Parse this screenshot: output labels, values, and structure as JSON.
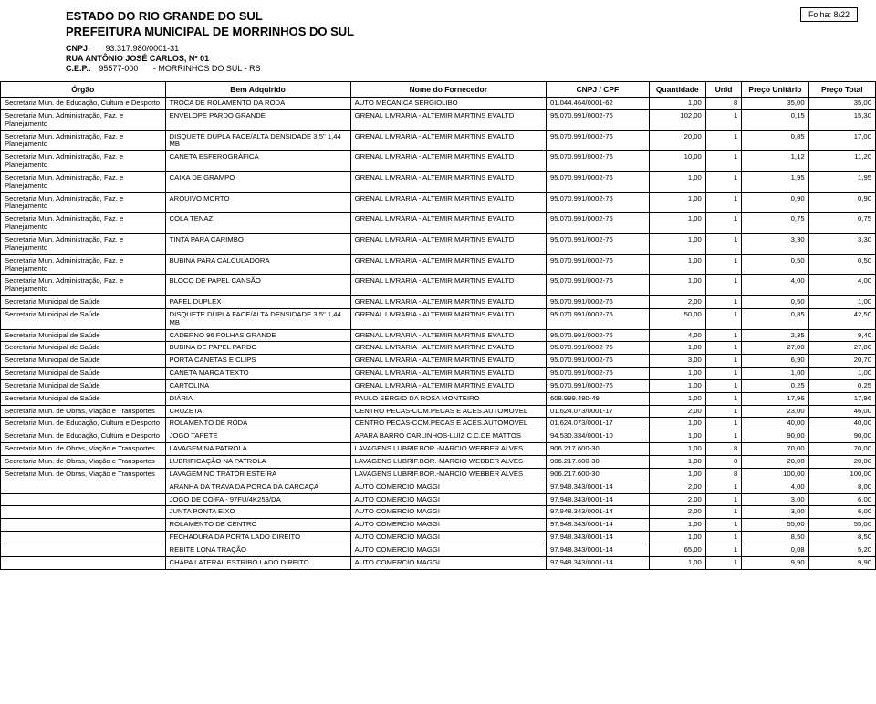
{
  "header": {
    "folha_label": "Folha:",
    "folha_value": "8/22",
    "title1": "ESTADO DO RIO GRANDE DO SUL",
    "title2": "PREFEITURA MUNICIPAL DE MORRINHOS DO SUL",
    "cnpj_label": "CNPJ:",
    "cnpj_value": "93.317.980/0001-31",
    "endereco": "RUA ANTÔNIO JOSÉ CARLOS, Nº 01",
    "cep_label": "C.E.P.:",
    "cep_value": "95577-000",
    "cidade_value": "- MORRINHOS DO SUL - RS"
  },
  "columns": {
    "orgao": "Órgão",
    "bem": "Bem Adquirido",
    "fornecedor": "Nome do Fornecedor",
    "cnpj": "CNPJ / CPF",
    "qtd": "Quantidade",
    "unid": "Unid",
    "unit": "Preço Unitário",
    "total": "Preço Total"
  },
  "rows": [
    {
      "orgao": "Secretaria Mun. de Educação, Cultura e Desporto",
      "bem": "TROCA DE ROLAMENTO DA RODA",
      "forn": "AUTO MECANICA SERGIOLIBO",
      "cnpj": "01.044.464/0001-62",
      "qtd": "1,00",
      "unid": "8",
      "unit": "35,00",
      "total": "35,00"
    },
    {
      "orgao": "Secretaria Mun. Administração, Faz. e Planejamento",
      "bem": "ENVELOPE PARDO GRANDE",
      "forn": "GRENAL LIVRARIA - ALTEMIR MARTINS EVALTD",
      "cnpj": "95.070.991/0002-76",
      "qtd": "102,00",
      "unid": "1",
      "unit": "0,15",
      "total": "15,30"
    },
    {
      "orgao": "Secretaria Mun. Administração, Faz. e Planejamento",
      "bem": "DISQUETE DUPLA FACE/ALTA DENSIDADE 3,5\" 1,44 MB",
      "forn": "GRENAL LIVRARIA - ALTEMIR MARTINS EVALTD",
      "cnpj": "95.070.991/0002-76",
      "qtd": "20,00",
      "unid": "1",
      "unit": "0,85",
      "total": "17,00"
    },
    {
      "orgao": "Secretaria Mun. Administração, Faz. e Planejamento",
      "bem": "CANETA ESFEROGRÁFICA",
      "forn": "GRENAL LIVRARIA - ALTEMIR MARTINS EVALTD",
      "cnpj": "95.070.991/0002-76",
      "qtd": "10,00",
      "unid": "1",
      "unit": "1,12",
      "total": "11,20"
    },
    {
      "orgao": "Secretaria Mun. Administração, Faz. e Planejamento",
      "bem": "CAIXA DE GRAMPO",
      "forn": "GRENAL LIVRARIA - ALTEMIR MARTINS EVALTD",
      "cnpj": "95.070.991/0002-76",
      "qtd": "1,00",
      "unid": "1",
      "unit": "1,95",
      "total": "1,95"
    },
    {
      "orgao": "Secretaria Mun. Administração, Faz. e Planejamento",
      "bem": "ARQUIVO MORTO",
      "forn": "GRENAL LIVRARIA - ALTEMIR MARTINS EVALTD",
      "cnpj": "95.070.991/0002-76",
      "qtd": "1,00",
      "unid": "1",
      "unit": "0,90",
      "total": "0,90"
    },
    {
      "orgao": "Secretaria Mun. Administração, Faz. e Planejamento",
      "bem": "COLA TENAZ",
      "forn": "GRENAL LIVRARIA - ALTEMIR MARTINS EVALTD",
      "cnpj": "95.070.991/0002-76",
      "qtd": "1,00",
      "unid": "1",
      "unit": "0,75",
      "total": "0,75"
    },
    {
      "orgao": "Secretaria Mun. Administração, Faz. e Planejamento",
      "bem": "TINTA PARA CARIMBO",
      "forn": "GRENAL LIVRARIA - ALTEMIR MARTINS EVALTD",
      "cnpj": "95.070.991/0002-76",
      "qtd": "1,00",
      "unid": "1",
      "unit": "3,30",
      "total": "3,30"
    },
    {
      "orgao": "Secretaria Mun. Administração, Faz. e Planejamento",
      "bem": "BUBINA PARA CALCULADORA",
      "forn": "GRENAL LIVRARIA - ALTEMIR MARTINS EVALTD",
      "cnpj": "95.070.991/0002-76",
      "qtd": "1,00",
      "unid": "1",
      "unit": "0,50",
      "total": "0,50"
    },
    {
      "orgao": "Secretaria Mun. Administração, Faz. e Planejamento",
      "bem": "BLOCO DE PAPEL CANSÃO",
      "forn": "GRENAL LIVRARIA - ALTEMIR MARTINS EVALTD",
      "cnpj": "95.070.991/0002-76",
      "qtd": "1,00",
      "unid": "1",
      "unit": "4,00",
      "total": "4,00"
    },
    {
      "orgao": "Secretaria Municipal de Saúde",
      "bem": "PAPEL DUPLEX",
      "forn": "GRENAL LIVRARIA - ALTEMIR MARTINS EVALTD",
      "cnpj": "95.070.991/0002-76",
      "qtd": "2,00",
      "unid": "1",
      "unit": "0,50",
      "total": "1,00"
    },
    {
      "orgao": "Secretaria Municipal de Saúde",
      "bem": "DISQUETE DUPLA FACE/ALTA DENSIDADE 3,5\" 1,44 MB",
      "forn": "GRENAL LIVRARIA - ALTEMIR MARTINS EVALTD",
      "cnpj": "95.070.991/0002-76",
      "qtd": "50,00",
      "unid": "1",
      "unit": "0,85",
      "total": "42,50"
    },
    {
      "orgao": "Secretaria Municipal de Saúde",
      "bem": "CADERNO 96 FOLHAS GRANDE",
      "forn": "GRENAL LIVRARIA - ALTEMIR MARTINS EVALTD",
      "cnpj": "95.070.991/0002-76",
      "qtd": "4,00",
      "unid": "1",
      "unit": "2,35",
      "total": "9,40"
    },
    {
      "orgao": "Secretaria Municipal de Saúde",
      "bem": "BUBINA DE PAPEL PARDO",
      "forn": "GRENAL LIVRARIA - ALTEMIR MARTINS EVALTD",
      "cnpj": "95.070.991/0002-76",
      "qtd": "1,00",
      "unid": "1",
      "unit": "27,00",
      "total": "27,00"
    },
    {
      "orgao": "Secretaria Municipal de Saúde",
      "bem": "PORTA CANETAS E CLIPS",
      "forn": "GRENAL LIVRARIA - ALTEMIR MARTINS EVALTD",
      "cnpj": "95.070.991/0002-76",
      "qtd": "3,00",
      "unid": "1",
      "unit": "6,90",
      "total": "20,70"
    },
    {
      "orgao": "Secretaria Municipal de Saúde",
      "bem": "CANETA MARCA TEXTO",
      "forn": "GRENAL LIVRARIA - ALTEMIR MARTINS EVALTD",
      "cnpj": "95.070.991/0002-76",
      "qtd": "1,00",
      "unid": "1",
      "unit": "1,00",
      "total": "1,00"
    },
    {
      "orgao": "Secretaria Municipal de Saúde",
      "bem": "CARTOLINA",
      "forn": "GRENAL LIVRARIA - ALTEMIR MARTINS EVALTD",
      "cnpj": "95.070.991/0002-76",
      "qtd": "1,00",
      "unid": "1",
      "unit": "0,25",
      "total": "0,25"
    },
    {
      "orgao": "Secretaria Municipal de Saúde",
      "bem": "DIÁRIA",
      "forn": "PAULO SERGIO DA ROSA MONTEIRO",
      "cnpj": "608.999.480-49",
      "qtd": "1,00",
      "unid": "1",
      "unit": "17,96",
      "total": "17,96"
    },
    {
      "orgao": "Secretaria Mun. de Obras, Viação e Transportes",
      "bem": "CRUZETA",
      "forn": "CENTRO PECAS-COM.PECAS E ACES.AUTOMOVEL",
      "cnpj": "01.624.073/0001-17",
      "qtd": "2,00",
      "unid": "1",
      "unit": "23,00",
      "total": "46,00"
    },
    {
      "orgao": "Secretaria Mun. de Educação, Cultura e Desporto",
      "bem": "ROLAMENTO DE RODA",
      "forn": "CENTRO PECAS-COM.PECAS E ACES.AUTOMOVEL",
      "cnpj": "01.624.073/0001-17",
      "qtd": "1,00",
      "unid": "1",
      "unit": "40,00",
      "total": "40,00"
    },
    {
      "orgao": "Secretaria Mun. de Educação, Cultura e Desporto",
      "bem": "JOGO TAPETE",
      "forn": "APARA BARRO CARLINHOS-LUIZ C.C.DE MATTOS",
      "cnpj": "94.530.334/0001-10",
      "qtd": "1,00",
      "unid": "1",
      "unit": "90,00",
      "total": "90,00"
    },
    {
      "orgao": "Secretaria Mun. de Obras, Viação e Transportes",
      "bem": "LAVAGEM NA PATROLA",
      "forn": "LAVAGENS LUBRIF.BOR.-MARCIO WEBBER ALVES",
      "cnpj": "906.217.600-30",
      "qtd": "1,00",
      "unid": "8",
      "unit": "70,00",
      "total": "70,00"
    },
    {
      "orgao": "Secretaria Mun. de Obras, Viação e Transportes",
      "bem": "LUBRIFICAÇÃO NA PATROLA",
      "forn": "LAVAGENS LUBRIF.BOR.-MARCIO WEBBER ALVES",
      "cnpj": "906.217.600-30",
      "qtd": "1,00",
      "unid": "8",
      "unit": "20,00",
      "total": "20,00"
    },
    {
      "orgao": "Secretaria Mun. de Obras, Viação e Transportes",
      "bem": "LAVAGEM NO TRATOR ESTEIRA",
      "forn": "LAVAGENS LUBRIF.BOR.-MARCIO WEBBER ALVES",
      "cnpj": "906.217.600-30",
      "qtd": "1,00",
      "unid": "8",
      "unit": "100,00",
      "total": "100,00"
    },
    {
      "orgao": "",
      "bem": "ARANHA DA TRAVA DA PORCA DA CARCAÇA",
      "forn": "AUTO COMERCIO MAGGI",
      "cnpj": "97.948.343/0001-14",
      "qtd": "2,00",
      "unid": "1",
      "unit": "4,00",
      "total": "8,00"
    },
    {
      "orgao": "",
      "bem": "JOGO DE COIFA - 97FU/4K258/DA",
      "forn": "AUTO COMERCIO MAGGI",
      "cnpj": "97.948.343/0001-14",
      "qtd": "2,00",
      "unid": "1",
      "unit": "3,00",
      "total": "6,00"
    },
    {
      "orgao": "",
      "bem": "JUNTA PONTA EIXO",
      "forn": "AUTO COMERCIO MAGGI",
      "cnpj": "97.948.343/0001-14",
      "qtd": "2,00",
      "unid": "1",
      "unit": "3,00",
      "total": "6,00"
    },
    {
      "orgao": "",
      "bem": "ROLAMENTO DE CENTRO",
      "forn": "AUTO COMERCIO MAGGI",
      "cnpj": "97.948.343/0001-14",
      "qtd": "1,00",
      "unid": "1",
      "unit": "55,00",
      "total": "55,00"
    },
    {
      "orgao": "",
      "bem": "FECHADURA DA PORTA LADO DIREITO",
      "forn": "AUTO COMERCIO MAGGI",
      "cnpj": "97.948.343/0001-14",
      "qtd": "1,00",
      "unid": "1",
      "unit": "8,50",
      "total": "8,50"
    },
    {
      "orgao": "",
      "bem": "REBITE LONA TRAÇÃO",
      "forn": "AUTO COMERCIO MAGGI",
      "cnpj": "97.948.343/0001-14",
      "qtd": "65,00",
      "unid": "1",
      "unit": "0,08",
      "total": "5,20"
    },
    {
      "orgao": "",
      "bem": "CHAPA LATERAL ESTRIBO LADO DIREITO",
      "forn": "AUTO COMERCIO MAGGI",
      "cnpj": "97.948.343/0001-14",
      "qtd": "1,00",
      "unid": "1",
      "unit": "9,90",
      "total": "9,90"
    }
  ]
}
